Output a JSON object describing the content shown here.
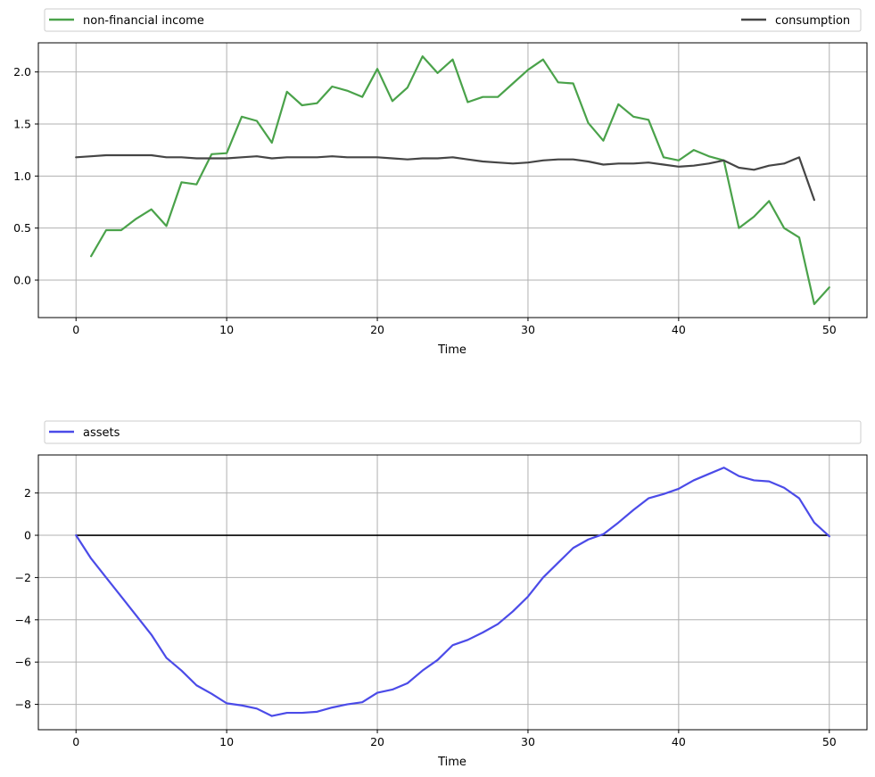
{
  "colors": {
    "income": "#4aa24a",
    "consumption": "#454545",
    "assets": "#4b4be8",
    "grid": "#b0b0b0",
    "zero_line": "#000000"
  },
  "chart_data": [
    {
      "type": "line",
      "xlabel": "Time",
      "ylabel": "",
      "xlim": [
        -2.5,
        52.5
      ],
      "ylim": [
        -0.36,
        2.28
      ],
      "xticks": [
        0,
        10,
        20,
        30,
        40,
        50
      ],
      "yticks": [
        0.0,
        0.5,
        1.0,
        1.5,
        2.0
      ],
      "xtick_labels": [
        "0",
        "10",
        "20",
        "30",
        "40",
        "50"
      ],
      "ytick_labels": [
        "0.0",
        "0.5",
        "1.0",
        "1.5",
        "2.0"
      ],
      "grid": true,
      "legend": "top, expanded above plot",
      "series": [
        {
          "name": "non-financial income",
          "color": "#4aa24a",
          "x": [
            1,
            2,
            3,
            4,
            5,
            6,
            7,
            8,
            9,
            10,
            11,
            12,
            13,
            14,
            15,
            16,
            17,
            18,
            19,
            20,
            21,
            22,
            23,
            24,
            25,
            26,
            27,
            28,
            29,
            30,
            31,
            32,
            33,
            34,
            35,
            36,
            37,
            38,
            39,
            40,
            41,
            42,
            43,
            44,
            45,
            46,
            47,
            48,
            49,
            50
          ],
          "values": [
            0.23,
            0.48,
            0.48,
            0.59,
            0.68,
            0.52,
            0.94,
            0.92,
            1.21,
            1.22,
            1.57,
            1.53,
            1.32,
            1.81,
            1.68,
            1.7,
            1.86,
            1.82,
            1.76,
            2.03,
            1.72,
            1.85,
            2.15,
            1.99,
            2.12,
            1.71,
            1.76,
            1.76,
            1.89,
            2.02,
            2.12,
            1.9,
            1.89,
            1.51,
            1.34,
            1.69,
            1.57,
            1.54,
            1.18,
            1.15,
            1.25,
            1.19,
            1.15,
            0.5,
            0.61,
            0.76,
            0.5,
            0.41,
            -0.23,
            -0.07
          ]
        },
        {
          "name": "consumption",
          "color": "#454545",
          "x": [
            0,
            1,
            2,
            3,
            4,
            5,
            6,
            7,
            8,
            9,
            10,
            11,
            12,
            13,
            14,
            15,
            16,
            17,
            18,
            19,
            20,
            21,
            22,
            23,
            24,
            25,
            26,
            27,
            28,
            29,
            30,
            31,
            32,
            33,
            34,
            35,
            36,
            37,
            38,
            39,
            40,
            41,
            42,
            43,
            44,
            45,
            46,
            47,
            48,
            49
          ],
          "values": [
            1.18,
            1.19,
            1.2,
            1.2,
            1.2,
            1.2,
            1.18,
            1.18,
            1.17,
            1.17,
            1.17,
            1.18,
            1.19,
            1.17,
            1.18,
            1.18,
            1.18,
            1.19,
            1.18,
            1.18,
            1.18,
            1.17,
            1.16,
            1.17,
            1.17,
            1.18,
            1.16,
            1.14,
            1.13,
            1.12,
            1.13,
            1.15,
            1.16,
            1.16,
            1.14,
            1.11,
            1.12,
            1.12,
            1.13,
            1.11,
            1.09,
            1.1,
            1.12,
            1.15,
            1.08,
            1.06,
            1.1,
            1.12,
            1.18,
            0.77
          ]
        }
      ]
    },
    {
      "type": "line",
      "xlabel": "Time",
      "ylabel": "",
      "xlim": [
        -2.5,
        52.5
      ],
      "ylim": [
        -9.2,
        3.8
      ],
      "xticks": [
        0,
        10,
        20,
        30,
        40,
        50
      ],
      "yticks": [
        -8,
        -6,
        -4,
        -2,
        0,
        2
      ],
      "xtick_labels": [
        "0",
        "10",
        "20",
        "30",
        "40",
        "50"
      ],
      "ytick_labels": [
        "−8",
        "−6",
        "−4",
        "−2",
        "0",
        "2"
      ],
      "grid": true,
      "legend": "top, expanded above plot",
      "hline": 0,
      "series": [
        {
          "name": "assets",
          "color": "#4b4be8",
          "x": [
            0,
            1,
            2,
            3,
            4,
            5,
            6,
            7,
            8,
            9,
            10,
            11,
            12,
            13,
            14,
            15,
            16,
            17,
            18,
            19,
            20,
            21,
            22,
            23,
            24,
            25,
            26,
            27,
            28,
            29,
            30,
            31,
            32,
            33,
            34,
            35,
            36,
            37,
            38,
            39,
            40,
            41,
            42,
            43,
            44,
            45,
            46,
            47,
            48,
            49,
            50
          ],
          "values": [
            0.0,
            -1.1,
            -2.0,
            -2.9,
            -3.8,
            -4.7,
            -5.8,
            -6.4,
            -7.1,
            -7.5,
            -7.95,
            -8.05,
            -8.2,
            -8.55,
            -8.4,
            -8.4,
            -8.35,
            -8.15,
            -8.0,
            -7.9,
            -7.45,
            -7.3,
            -7.0,
            -6.4,
            -5.9,
            -5.2,
            -4.95,
            -4.6,
            -4.2,
            -3.6,
            -2.9,
            -2.0,
            -1.3,
            -0.6,
            -0.2,
            0.05,
            0.6,
            1.2,
            1.75,
            1.95,
            2.2,
            2.6,
            2.9,
            3.2,
            2.8,
            2.6,
            2.55,
            2.25,
            1.75,
            0.6,
            -0.05
          ]
        }
      ]
    }
  ]
}
